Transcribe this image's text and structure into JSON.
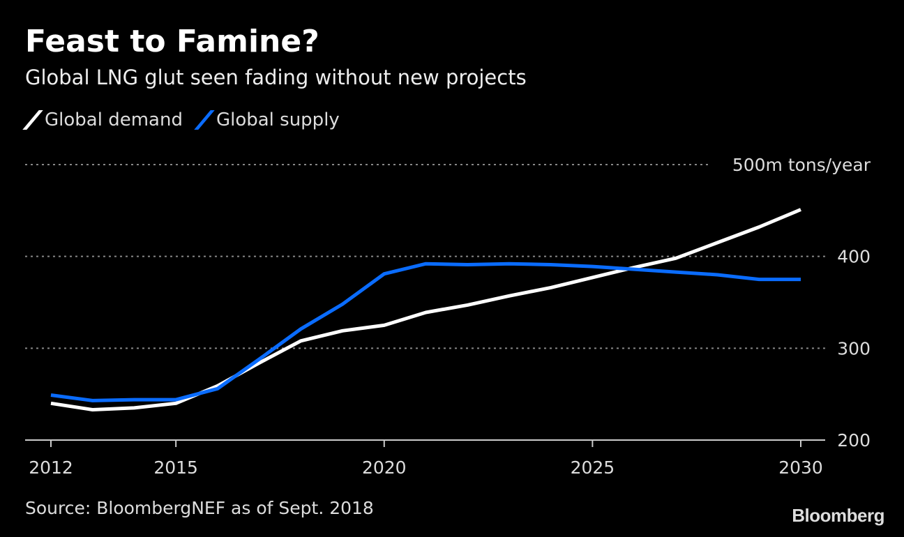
{
  "title": "Feast to Famine?",
  "subtitle": "Global LNG glut seen fading without new projects",
  "source": "Source: BloombergNEF as of Sept. 2018",
  "logo": "Bloomberg",
  "colors": {
    "demand": "#ffffff",
    "supply": "#0a6cff",
    "grid": "#888888"
  },
  "chart_data": {
    "type": "line",
    "title": "Feast to Famine?",
    "subtitle": "Global LNG glut seen fading without new projects",
    "ylabel": "500m tons/year",
    "unit_label": "500m tons/year",
    "x": [
      2012,
      2013,
      2014,
      2015,
      2016,
      2017,
      2018,
      2019,
      2020,
      2021,
      2022,
      2023,
      2024,
      2025,
      2026,
      2027,
      2028,
      2029,
      2030
    ],
    "xlim": [
      2011.4,
      2030.6
    ],
    "ylim": [
      200,
      500
    ],
    "xticks": [
      2012,
      2015,
      2020,
      2025,
      2030
    ],
    "xtick_labels": [
      "2012",
      "2015",
      "2020",
      "2025",
      "2030"
    ],
    "yticks": [
      200,
      300,
      400,
      500
    ],
    "ytick_labels": [
      "200",
      "300",
      "400",
      "500m tons/year"
    ],
    "grid": true,
    "legend_position": "top-left",
    "series": [
      {
        "name": "Global demand",
        "color": "#ffffff",
        "values": [
          240,
          233,
          235,
          240,
          259,
          284,
          308,
          319,
          325,
          339,
          347,
          357,
          366,
          377,
          388,
          398,
          415,
          432,
          451
        ]
      },
      {
        "name": "Global supply",
        "color": "#0a6cff",
        "values": [
          249,
          243,
          244,
          244,
          256,
          288,
          321,
          348,
          381,
          392,
          391,
          392,
          391,
          389,
          386,
          383,
          380,
          375,
          375
        ]
      }
    ]
  }
}
